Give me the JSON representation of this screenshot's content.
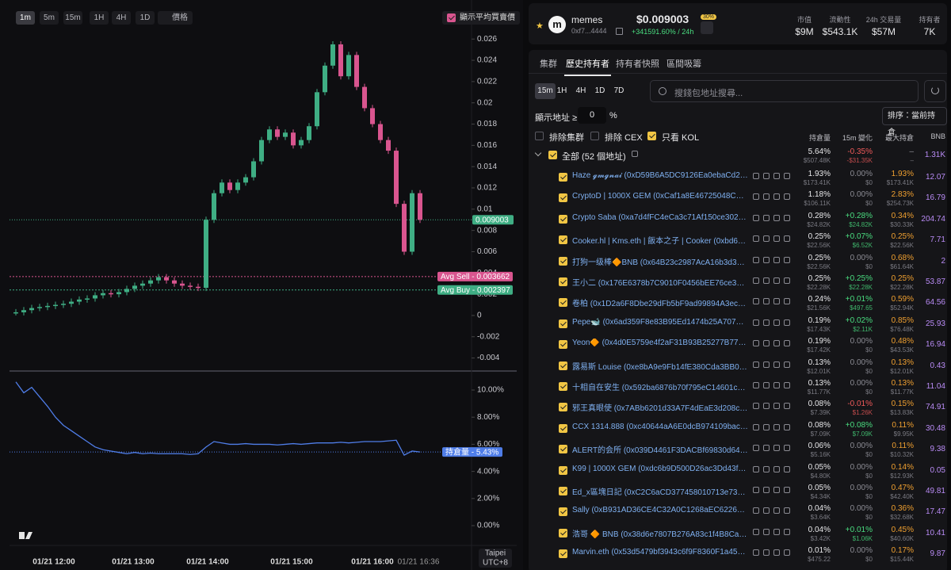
{
  "chart_toolbar": {
    "intervals": [
      "1m",
      "5m",
      "15m",
      "1H",
      "4H",
      "1D"
    ],
    "active_index": 0,
    "price_toggle": "價格",
    "avg_checkbox": "顯示平均買賣價"
  },
  "price_chart": {
    "type": "candlestick",
    "values": [
      0.0003,
      0.0005,
      0.0007,
      0.0008,
      0.0009,
      0.001,
      0.0011,
      0.0013,
      0.0015,
      0.0016,
      0.0019,
      0.0021,
      0.002,
      0.0022,
      0.0025,
      0.0028,
      0.003,
      0.0033,
      0.0036,
      0.0033,
      0.003,
      0.0028,
      0.0027,
      0.0026,
      0.009,
      0.0115,
      0.0125,
      0.0118,
      0.0125,
      0.013,
      0.0145,
      0.0165,
      0.0175,
      0.0168,
      0.0172,
      0.016,
      0.0165,
      0.0178,
      0.021,
      0.0235,
      0.0255,
      0.0225,
      0.0245,
      0.0215,
      0.0195,
      0.018,
      0.0165,
      0.0155,
      0.0105,
      0.006,
      0.0115,
      0.009003
    ],
    "ylim": [
      -0.005,
      0.0293
    ],
    "yticks": [
      -0.004,
      -0.002,
      0,
      0.002,
      0.004,
      0.006,
      0.008,
      0.01,
      0.012,
      0.014,
      0.016,
      0.018,
      0.02,
      0.022,
      0.024,
      0.026
    ],
    "current": 0.009003,
    "avg_sell": {
      "value": 0.003662,
      "label": "Avg Sell - 0.003662"
    },
    "avg_buy": {
      "value": 0.002397,
      "label": "Avg Buy - 0.002397"
    },
    "up_color": "#3fae84",
    "down_color": "#d9558f"
  },
  "holding_chart": {
    "type": "line",
    "values": [
      10.6,
      9.8,
      10.2,
      9.5,
      8.8,
      8.0,
      7.4,
      7.0,
      6.6,
      6.2,
      5.8,
      5.6,
      5.5,
      5.4,
      5.3,
      5.4,
      5.3,
      5.35,
      5.3,
      5.3,
      5.3,
      5.3,
      5.25,
      5.3,
      5.8,
      6.2,
      6.1,
      6.0,
      6.0,
      6.05,
      6.0,
      6.0,
      6.0,
      5.95,
      6.0,
      6.05,
      6.0,
      6.05,
      6.1,
      6.1,
      6.1,
      6.15,
      6.1,
      6.15,
      6.2,
      6.2,
      6.2,
      6.25,
      6.3,
      5.2,
      5.5,
      5.43
    ],
    "ylim": [
      -1.46,
      11.17
    ],
    "yticks": [
      {
        "value": 0,
        "label": "0.00%"
      },
      {
        "value": 2,
        "label": "2.00%"
      },
      {
        "value": 4,
        "label": "4.00%"
      },
      {
        "value": 6,
        "label": "6.00%"
      },
      {
        "value": 8,
        "label": "8.00%"
      },
      {
        "value": 10,
        "label": "10.00%"
      }
    ],
    "current": {
      "value": 5.43,
      "label": "持倉量 - 5.43%"
    },
    "color": "#4f7de8"
  },
  "x_axis": {
    "labels": [
      "01/21 12:00",
      "01/21 13:00",
      "01/21 14:00",
      "01/21 15:00",
      "01/21 16:00"
    ],
    "last": "01/21 16:36",
    "timezone": [
      "Taipei",
      "UTC+8"
    ]
  },
  "token": {
    "logo": "m",
    "name": "memes",
    "address": "0xf7...4444",
    "price": "$0.009003",
    "change": "+341591.60% / 24h",
    "badge": "30%",
    "stats": [
      {
        "label": "市值",
        "value": "$9M"
      },
      {
        "label": "流動性",
        "value": "$543.1K"
      },
      {
        "label": "24h 交易量",
        "value": "$57M"
      },
      {
        "label": "持有者",
        "value": "7K"
      }
    ]
  },
  "tabs": {
    "items": [
      "集群",
      "歷史持有者",
      "持有者快照",
      "區間吸籌"
    ],
    "active_index": 1
  },
  "ranges": {
    "items": [
      "15m",
      "1H",
      "4H",
      "1D",
      "7D"
    ],
    "active_index": 0
  },
  "search_placeholder": "搜錢包地址搜尋...",
  "threshold": {
    "label": "顯示地址 ≥",
    "value": "0",
    "unit": "%"
  },
  "sort_button": "排序：當前持倉",
  "filters": [
    {
      "label": "排除集群",
      "checked": false
    },
    {
      "label": "排除 CEX",
      "checked": false
    },
    {
      "label": "只看 KOL",
      "checked": true
    }
  ],
  "table": {
    "headers": [
      "持倉量",
      "15m 變化",
      "最大持倉",
      "BNB"
    ],
    "total": {
      "name": "全部 (52 個地址)",
      "hold": "5.64%",
      "hold_usd": "$507.48K",
      "change": "-0.35%",
      "change_usd": "-$31.35K",
      "max": "–",
      "max_usd": "–",
      "bnb": "1.31K"
    },
    "rows": [
      {
        "name": "Haze 𝓰𝓶𝓰𝓷𝓪𝓲 (0xD59B6A5DC9126Ea0ebaCd2D8...",
        "hold": "1.93%",
        "hold_usd": "$173.41K",
        "change": "0.00%",
        "change_usd": "$0",
        "max": "1.93%",
        "max_usd": "$173.41K",
        "bnb": "12.07"
      },
      {
        "name": "CryptoD | 1000X GEM (0xCaf1a8E46725048C45c...",
        "hold": "1.18%",
        "hold_usd": "$106.11K",
        "change": "0.00%",
        "change_usd": "$0",
        "max": "2.83%",
        "max_usd": "$254.73K",
        "bnb": "16.79"
      },
      {
        "name": "Crypto Saba (0xa7d4fFC4eCa3c71Af150ce30256...",
        "hold": "0.28%",
        "hold_usd": "$24.82K",
        "change": "+0.28%",
        "change_usd": "$24.82K",
        "max": "0.34%",
        "max_usd": "$30.33K",
        "bnb": "204.74"
      },
      {
        "name": "Cooker.hl | Kms.eth | 飯本之子 | Cooker (0xbd6B8D...",
        "hold": "0.25%",
        "hold_usd": "$22.56K",
        "change": "+0.07%",
        "change_usd": "$6.52K",
        "max": "0.25%",
        "max_usd": "$22.56K",
        "bnb": "7.71"
      },
      {
        "name": "打狗一级棒🔶BNB (0x64B23c2987AcA16b3d3C55a...",
        "hold": "0.25%",
        "hold_usd": "$22.56K",
        "change": "0.00%",
        "change_usd": "$0",
        "max": "0.68%",
        "max_usd": "$61.64K",
        "bnb": "2"
      },
      {
        "name": "王小二 (0x176E6378b7C9010F0456bEE76ce3039...",
        "hold": "0.25%",
        "hold_usd": "$22.28K",
        "change": "+0.25%",
        "change_usd": "$22.28K",
        "max": "0.25%",
        "max_usd": "$22.28K",
        "bnb": "53.87"
      },
      {
        "name": "卷柏 (0x1D2a6F8Dbe29dFb5bF9ad99894A3ecFC...",
        "hold": "0.24%",
        "hold_usd": "$21.56K",
        "change": "+0.01%",
        "change_usd": "$497.65",
        "max": "0.59%",
        "max_usd": "$52.94K",
        "bnb": "64.56"
      },
      {
        "name": "Pepe🐋 (0x6ad359F8e83B95Ed1474b25A7075c18...",
        "hold": "0.19%",
        "hold_usd": "$17.43K",
        "change": "+0.02%",
        "change_usd": "$2.11K",
        "max": "0.85%",
        "max_usd": "$76.48K",
        "bnb": "25.93"
      },
      {
        "name": "Yeon🔶 (0x4d0E5759e4f2aF31B93B25277B77B7c...",
        "hold": "0.19%",
        "hold_usd": "$17.42K",
        "change": "0.00%",
        "change_usd": "$0",
        "max": "0.48%",
        "max_usd": "$43.53K",
        "bnb": "16.94"
      },
      {
        "name": "露易斯 Louise (0xe8bA9e9Fb14fE380Cda3BB098...",
        "hold": "0.13%",
        "hold_usd": "$12.01K",
        "change": "0.00%",
        "change_usd": "$0",
        "max": "0.13%",
        "max_usd": "$12.01K",
        "bnb": "0.43"
      },
      {
        "name": "十相自在安生 (0x592ba6876b70f795eC14601c69a...",
        "hold": "0.13%",
        "hold_usd": "$11.77K",
        "change": "0.00%",
        "change_usd": "$0",
        "max": "0.13%",
        "max_usd": "$11.77K",
        "bnb": "11.04"
      },
      {
        "name": "邪王真眼使 (0x7ABb6201d33A7F4dEaE3d208c777...",
        "hold": "0.08%",
        "hold_usd": "$7.39K",
        "change": "-0.01%",
        "change_usd": "$1.26K",
        "max": "0.15%",
        "max_usd": "$13.83K",
        "bnb": "74.91"
      },
      {
        "name": "CCX 1314.888 (0xc40644aA6E0dcB974109bacad...",
        "hold": "0.08%",
        "hold_usd": "$7.09K",
        "change": "+0.08%",
        "change_usd": "$7.09K",
        "max": "0.11%",
        "max_usd": "$9.95K",
        "bnb": "30.48"
      },
      {
        "name": "ALERT的会所 (0x039D4461F3DACBf69830d64FE...",
        "hold": "0.06%",
        "hold_usd": "$5.16K",
        "change": "0.00%",
        "change_usd": "$0",
        "max": "0.11%",
        "max_usd": "$10.32K",
        "bnb": "9.38"
      },
      {
        "name": "K99 | 1000X GEM (0xdc6b9D500D26ac3Dd43f78...",
        "hold": "0.05%",
        "hold_usd": "$4.80K",
        "change": "0.00%",
        "change_usd": "$0",
        "max": "0.14%",
        "max_usd": "$12.93K",
        "bnb": "0.05"
      },
      {
        "name": "Ed_x區塊日記 (0xC2C6aCD377458010713e733e1b...",
        "hold": "0.05%",
        "hold_usd": "$4.34K",
        "change": "0.00%",
        "change_usd": "$0",
        "max": "0.47%",
        "max_usd": "$42.40K",
        "bnb": "49.81"
      },
      {
        "name": "Sally (0xB931AD36CE4C32A0C1268aEC6226474...",
        "hold": "0.04%",
        "hold_usd": "$3.64K",
        "change": "0.00%",
        "change_usd": "$0",
        "max": "0.36%",
        "max_usd": "$32.68K",
        "bnb": "17.47"
      },
      {
        "name": "浩哥 🔶 BNB (0x38d6e7807B276A83c1f4B8Ca562...",
        "hold": "0.04%",
        "hold_usd": "$3.42K",
        "change": "+0.01%",
        "change_usd": "$1.06K",
        "max": "0.45%",
        "max_usd": "$40.60K",
        "bnb": "10.41"
      },
      {
        "name": "Marvin.eth (0x53d5479bf3943c6f9F8360F1a4501...",
        "hold": "0.01%",
        "hold_usd": "$475.22",
        "change": "0.00%",
        "change_usd": "$0",
        "max": "0.17%",
        "max_usd": "$15.44K",
        "bnb": "9.87"
      }
    ]
  }
}
